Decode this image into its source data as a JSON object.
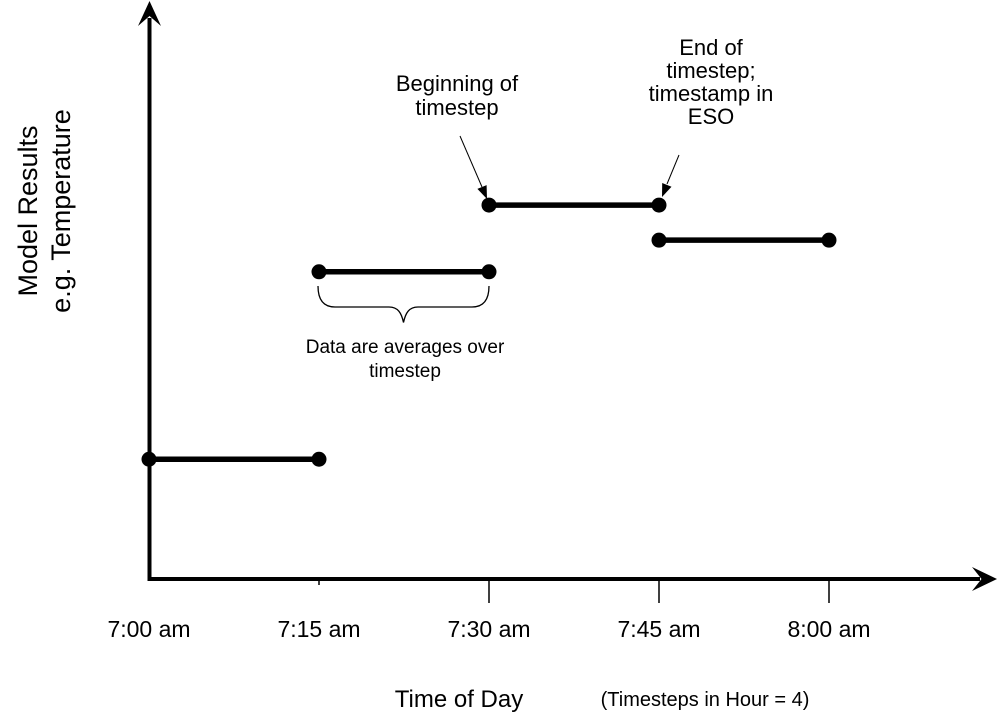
{
  "figure": {
    "y_axis_label": "Model Results\ne.g. Temperature",
    "x_axis_label": "Time of Day",
    "x_axis_note": "(Timesteps in Hour = 4)"
  },
  "annotations": {
    "beginning": "Beginning of\ntimestep",
    "end": "End of\ntimestep;\ntimestamp in\nESO",
    "averages": "Data are averages over\ntimestep"
  },
  "colors": {
    "ink": "#000000",
    "background": "#ffffff"
  },
  "chart_data": {
    "type": "line",
    "subtype": "step-segments",
    "title": "",
    "xlabel": "Time of Day",
    "xlabel_note": "(Timesteps in Hour = 4)",
    "ylabel": "Model Results e.g. Temperature",
    "y_axis": "unlabeled; relative model-result level estimated from plot (0-1)",
    "timesteps_per_hour": 4,
    "grid": false,
    "legend": "none",
    "x_ticks": [
      {
        "minutes": 0,
        "label": "7:00 am"
      },
      {
        "minutes": 15,
        "label": "7:15 am"
      },
      {
        "minutes": 30,
        "label": "7:30 am"
      },
      {
        "minutes": 45,
        "label": "7:45 am"
      },
      {
        "minutes": 60,
        "label": "8:00 am"
      }
    ],
    "segments": [
      {
        "interval": "7:00-7:15 am",
        "start_min": 0,
        "end_min": 15,
        "value": 0.21
      },
      {
        "interval": "7:15-7:30 am",
        "start_min": 15,
        "end_min": 30,
        "value": 0.536
      },
      {
        "interval": "7:30-7:45 am",
        "start_min": 30,
        "end_min": 45,
        "value": 0.652
      },
      {
        "interval": "7:45-8:00 am",
        "start_min": 45,
        "end_min": 60,
        "value": 0.591
      }
    ],
    "callouts": [
      {
        "text": "Beginning of timestep",
        "points_to": "start point of 7:30-7:45 am segment"
      },
      {
        "text": "End of timestep; timestamp in ESO",
        "points_to": "end point of 7:30-7:45 am segment"
      },
      {
        "text": "Data are averages over timestep",
        "points_to": "brace under 7:15-7:30 am segment"
      }
    ]
  }
}
